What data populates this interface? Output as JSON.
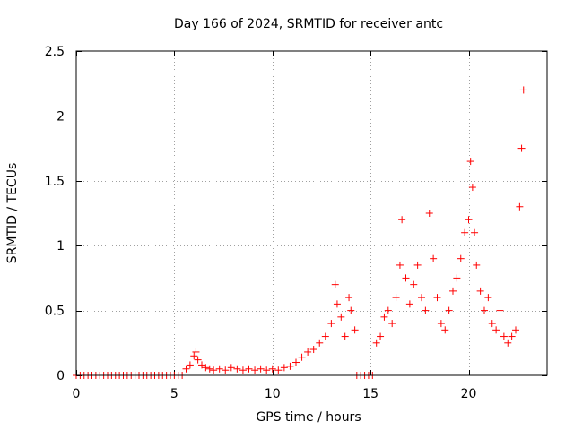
{
  "chart_data": {
    "type": "scatter",
    "title": "Day 166 of 2024, SRMTID for receiver antc",
    "xlabel": "GPS time / hours",
    "ylabel": "SRMTID / TECUs",
    "xlim": [
      0,
      24
    ],
    "ylim": [
      0,
      2.5
    ],
    "xticks": [
      0,
      5,
      10,
      15,
      20
    ],
    "xtick_labels": [
      "0",
      "5",
      "10",
      "15",
      "20"
    ],
    "yticks": [
      0,
      0.5,
      1,
      1.5,
      2,
      2.5
    ],
    "ytick_labels": [
      "0",
      "0.5",
      "1",
      "1.5",
      "2",
      "2.5"
    ],
    "grid": true,
    "marker": "+",
    "color": "#ff0000",
    "series": [
      {
        "name": "SRMTID",
        "x": [
          0.0,
          0.2,
          0.4,
          0.6,
          0.8,
          1.0,
          1.2,
          1.4,
          1.6,
          1.8,
          2.0,
          2.2,
          2.4,
          2.6,
          2.8,
          3.0,
          3.2,
          3.4,
          3.6,
          3.8,
          4.0,
          4.2,
          4.4,
          4.6,
          4.8,
          5.0,
          5.2,
          5.4,
          5.6,
          5.8,
          6.0,
          6.1,
          6.2,
          6.4,
          6.6,
          6.8,
          7.0,
          7.3,
          7.6,
          7.9,
          8.2,
          8.5,
          8.8,
          9.1,
          9.4,
          9.7,
          10.0,
          10.3,
          10.6,
          10.9,
          11.2,
          11.5,
          11.8,
          12.1,
          12.4,
          12.7,
          13.0,
          13.2,
          13.3,
          13.5,
          13.7,
          13.9,
          14.0,
          14.2,
          14.3,
          14.5,
          14.7,
          14.9,
          15.1,
          15.3,
          15.5,
          15.7,
          15.9,
          16.1,
          16.3,
          16.5,
          16.6,
          16.8,
          17.0,
          17.2,
          17.4,
          17.6,
          17.8,
          18.0,
          18.2,
          18.4,
          18.6,
          18.8,
          19.0,
          19.2,
          19.4,
          19.6,
          19.8,
          20.0,
          20.1,
          20.2,
          20.3,
          20.4,
          20.6,
          20.8,
          21.0,
          21.2,
          21.4,
          21.6,
          21.8,
          22.0,
          22.2,
          22.4,
          22.6,
          22.7,
          22.8
        ],
        "y": [
          0,
          0,
          0,
          0,
          0,
          0,
          0,
          0,
          0,
          0,
          0,
          0,
          0,
          0,
          0,
          0,
          0,
          0,
          0,
          0,
          0,
          0,
          0,
          0,
          0,
          0,
          0,
          0,
          0.05,
          0.08,
          0.15,
          0.18,
          0.12,
          0.08,
          0.06,
          0.05,
          0.04,
          0.05,
          0.04,
          0.06,
          0.05,
          0.04,
          0.05,
          0.04,
          0.05,
          0.04,
          0.05,
          0.04,
          0.06,
          0.07,
          0.1,
          0.14,
          0.18,
          0.2,
          0.25,
          0.3,
          0.4,
          0.7,
          0.55,
          0.45,
          0.3,
          0.6,
          0.5,
          0.35,
          0,
          0,
          0,
          0,
          0,
          0.25,
          0.3,
          0.45,
          0.5,
          0.4,
          0.6,
          0.85,
          1.2,
          0.75,
          0.55,
          0.7,
          0.85,
          0.6,
          0.5,
          1.25,
          0.9,
          0.6,
          0.4,
          0.35,
          0.5,
          0.65,
          0.75,
          0.9,
          1.1,
          1.2,
          1.65,
          1.45,
          1.1,
          0.85,
          0.65,
          0.5,
          0.6,
          0.4,
          0.35,
          0.5,
          0.3,
          0.25,
          0.3,
          0.35,
          1.3,
          1.75,
          2.2
        ]
      }
    ]
  }
}
